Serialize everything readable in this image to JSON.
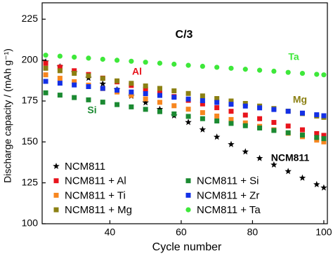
{
  "chart_data": {
    "type": "scatter",
    "title": "C/3",
    "x_label": "Cycle number",
    "y_label": "Discharge capacity / (mAh g⁻¹)",
    "x": [
      22,
      26,
      30,
      34,
      38,
      42,
      46,
      50,
      54,
      58,
      62,
      66,
      70,
      74,
      78,
      82,
      86,
      90,
      94,
      98,
      100
    ],
    "series": [
      {
        "name": "NCM811",
        "color": "#000000",
        "marker": "star",
        "values": [
          199,
          196,
          192.5,
          189,
          185.5,
          182,
          178,
          174,
          170,
          166,
          162,
          157.5,
          153,
          148.5,
          144,
          140,
          136,
          132,
          128,
          124,
          122
        ]
      },
      {
        "name": "NCM811 + Al",
        "color": "#e8141c",
        "marker": "square",
        "values": [
          198,
          195.7,
          193.5,
          191.2,
          189.0,
          186.7,
          184.5,
          182.2,
          180.0,
          177.7,
          175.4,
          173.2,
          170.9,
          168.7,
          166.4,
          164.2,
          161.9,
          159.7,
          157.4,
          155.1,
          154
        ]
      },
      {
        "name": "NCM811 + Ti",
        "color": "#f7861f",
        "marker": "square",
        "values": [
          191,
          188.9,
          186.8,
          184.7,
          182.6,
          180.5,
          178.4,
          176.3,
          174.2,
          172.1,
          170.0,
          167.9,
          165.8,
          163.7,
          161.6,
          159.5,
          157.4,
          155.3,
          153.2,
          151.1,
          150
        ]
      },
      {
        "name": "NCM811 + Mg",
        "color": "#8b8013",
        "marker": "square",
        "values": [
          195,
          193.5,
          191.9,
          190.4,
          188.8,
          187.3,
          185.8,
          184.2,
          182.7,
          181.2,
          179.6,
          178.1,
          176.5,
          175.0,
          173.5,
          171.9,
          170.4,
          168.8,
          167.3,
          165.8,
          165
        ]
      },
      {
        "name": "NCM811 + Si",
        "color": "#1b8a32",
        "marker": "square",
        "values": [
          180,
          178.6,
          177.1,
          175.7,
          174.3,
          172.8,
          171.4,
          169.9,
          168.5,
          167.1,
          165.6,
          164.2,
          162.8,
          161.3,
          159.9,
          158.5,
          157.0,
          155.6,
          154.2,
          152.7,
          152
        ]
      },
      {
        "name": "NCM811 + Zr",
        "color": "#1330e6",
        "marker": "square",
        "values": [
          187,
          185.9,
          184.8,
          183.8,
          182.7,
          181.6,
          180.5,
          179.5,
          178.4,
          177.3,
          176.2,
          175.2,
          174.1,
          173.0,
          171.9,
          170.8,
          169.8,
          168.7,
          167.6,
          166.6,
          166
        ]
      },
      {
        "name": "NCM811 + Ta",
        "color": "#3ee83a",
        "marker": "circle",
        "values": [
          203,
          202.4,
          201.8,
          201.2,
          200.5,
          199.9,
          199.3,
          198.7,
          198.1,
          197.5,
          196.8,
          196.2,
          195.6,
          195.0,
          194.4,
          193.8,
          193.2,
          192.5,
          191.9,
          191.3,
          191
        ]
      }
    ],
    "annotations": [
      {
        "text": "Al",
        "color": "#e8141c"
      },
      {
        "text": "Si",
        "color": "#1b8a32"
      },
      {
        "text": "Ta",
        "color": "#3ee83a"
      },
      {
        "text": "Mg",
        "color": "#8b8013"
      },
      {
        "text": "NCM811",
        "color": "#000000"
      }
    ],
    "xlim": [
      21,
      101
    ],
    "xticks": [
      40,
      60,
      80,
      100
    ],
    "ylim": [
      100,
      235
    ],
    "yticks": [
      100,
      125,
      150,
      175,
      200,
      225
    ],
    "grid": false
  }
}
